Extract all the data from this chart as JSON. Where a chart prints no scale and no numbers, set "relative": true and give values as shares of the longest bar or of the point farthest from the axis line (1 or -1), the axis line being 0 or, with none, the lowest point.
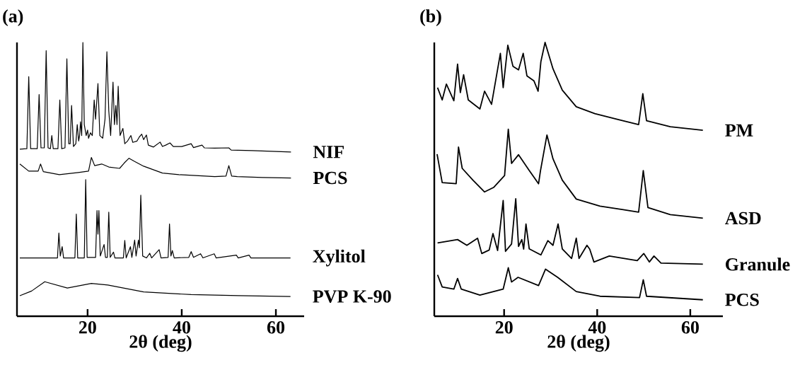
{
  "chart_data": [
    {
      "type": "line",
      "title": "(a)",
      "xlabel": "2θ (deg)",
      "relative": true,
      "xlim": [
        5,
        66
      ],
      "xticks": [
        20,
        40,
        60
      ],
      "series": [
        {
          "name": "NIF",
          "color": "#000000",
          "x": [
            5.6,
            7.1,
            7.5,
            7.9,
            9.3,
            9.7,
            10.1,
            10.8,
            11.2,
            11.6,
            12.1,
            12.4,
            12.7,
            13.7,
            14.1,
            14.5,
            15.2,
            15.6,
            16.0,
            16.3,
            16.6,
            17.0,
            17.5,
            17.8,
            18.1,
            18.3,
            18.5,
            18.75,
            19.0,
            19.3,
            19.7,
            20.0,
            20.2,
            20.6,
            21.0,
            21.4,
            21.7,
            22.2,
            22.6,
            23.2,
            23.7,
            24.1,
            24.5,
            24.9,
            25.4,
            25.7,
            26.0,
            26.25,
            26.5,
            26.9,
            27.5,
            27.9,
            28.5,
            29.2,
            29.6,
            30.5,
            31.0,
            31.5,
            31.9,
            32.5,
            32.9,
            34.0,
            35.4,
            35.9,
            36.6,
            37.5,
            38.2,
            40.0,
            42.0,
            42.5,
            44.3,
            44.8,
            47.0,
            50.0,
            50.5,
            55.0,
            63.2
          ],
          "values": [
            0.61,
            0.612,
            0.875,
            0.612,
            0.612,
            0.81,
            0.615,
            0.615,
            0.97,
            0.615,
            0.612,
            0.66,
            0.612,
            0.612,
            0.79,
            0.612,
            0.615,
            0.94,
            0.63,
            0.63,
            0.77,
            0.62,
            0.63,
            0.7,
            0.64,
            0.66,
            0.71,
            0.66,
            1.0,
            0.7,
            0.66,
            0.68,
            0.65,
            0.67,
            0.66,
            0.79,
            0.72,
            0.85,
            0.66,
            0.65,
            0.72,
            0.966,
            0.75,
            0.66,
            0.855,
            0.7,
            0.77,
            0.7,
            0.84,
            0.66,
            0.686,
            0.63,
            0.64,
            0.66,
            0.635,
            0.64,
            0.655,
            0.665,
            0.645,
            0.662,
            0.625,
            0.618,
            0.636,
            0.62,
            0.625,
            0.633,
            0.62,
            0.62,
            0.63,
            0.616,
            0.625,
            0.615,
            0.614,
            0.615,
            0.607,
            0.605,
            0.6
          ]
        },
        {
          "name": "PCS",
          "color": "#000000",
          "x": [
            5.6,
            7.5,
            9.5,
            10.0,
            10.6,
            14.0,
            18.0,
            20.2,
            20.8,
            21.5,
            23.0,
            24.5,
            26.8,
            27.8,
            28.8,
            30.0,
            31.9,
            35.9,
            39.4,
            47.0,
            49.4,
            50.0,
            50.6,
            51.8,
            57.1,
            63.2
          ],
          "values": [
            0.556,
            0.53,
            0.53,
            0.556,
            0.528,
            0.517,
            0.525,
            0.53,
            0.58,
            0.55,
            0.556,
            0.545,
            0.54,
            0.56,
            0.577,
            0.565,
            0.548,
            0.523,
            0.517,
            0.51,
            0.512,
            0.55,
            0.512,
            0.51,
            0.507,
            0.505
          ]
        },
        {
          "name": "Xylitol",
          "color": "#000000",
          "x": [
            5.6,
            13.6,
            13.9,
            14.2,
            14.6,
            14.9,
            17.3,
            17.6,
            17.9,
            19.3,
            19.6,
            19.9,
            21.7,
            22.0,
            22.2,
            22.4,
            22.7,
            23.5,
            23.8,
            24.2,
            24.5,
            24.8,
            25.5,
            25.8,
            27.6,
            27.9,
            28.2,
            29.1,
            29.4,
            30.0,
            30.3,
            30.8,
            31.0,
            31.3,
            31.7,
            32.5,
            33.2,
            33.6,
            35.2,
            35.6,
            37.1,
            37.4,
            37.7,
            38.0,
            38.4,
            41.5,
            42.0,
            42.5,
            44.0,
            44.5,
            46.9,
            47.3,
            51.6,
            52.0,
            54.3,
            54.7,
            63.1
          ],
          "values": [
            0.213,
            0.213,
            0.304,
            0.22,
            0.254,
            0.213,
            0.213,
            0.373,
            0.213,
            0.213,
            0.499,
            0.215,
            0.215,
            0.386,
            0.3,
            0.386,
            0.22,
            0.262,
            0.215,
            0.215,
            0.38,
            0.215,
            0.234,
            0.213,
            0.213,
            0.277,
            0.213,
            0.254,
            0.215,
            0.278,
            0.22,
            0.278,
            0.25,
            0.442,
            0.22,
            0.213,
            0.23,
            0.213,
            0.243,
            0.213,
            0.215,
            0.337,
            0.22,
            0.24,
            0.213,
            0.215,
            0.236,
            0.215,
            0.228,
            0.213,
            0.228,
            0.213,
            0.223,
            0.213,
            0.223,
            0.213,
            0.213
          ]
        },
        {
          "name": "PVP K-90",
          "color": "#000000",
          "x": [
            5.6,
            8.1,
            10.9,
            15.7,
            20.8,
            24.3,
            31.9,
            42.0,
            52.1,
            63.1
          ],
          "values": [
            0.075,
            0.092,
            0.126,
            0.103,
            0.12,
            0.114,
            0.089,
            0.079,
            0.075,
            0.072
          ]
        }
      ]
    },
    {
      "type": "line",
      "title": "(b)",
      "xlabel": "2θ (deg)",
      "relative": true,
      "xlim": [
        5,
        67
      ],
      "xticks": [
        20,
        40,
        60
      ],
      "series": [
        {
          "name": "PM",
          "color": "#000000",
          "x": [
            5.7,
            6.7,
            7.6,
            9.2,
            10.0,
            10.6,
            11.3,
            12.3,
            14.8,
            15.8,
            17.3,
            19.2,
            19.8,
            20.8,
            21.9,
            23.1,
            24.1,
            24.9,
            26.4,
            27.3,
            27.9,
            28.8,
            30.5,
            32.5,
            35.5,
            39.5,
            44.6,
            48.9,
            49.8,
            50.6,
            55.7,
            62.7
          ],
          "values": [
            0.835,
            0.79,
            0.848,
            0.787,
            0.921,
            0.817,
            0.882,
            0.79,
            0.757,
            0.822,
            0.774,
            0.96,
            0.835,
            0.99,
            0.913,
            0.9,
            0.96,
            0.878,
            0.86,
            0.822,
            0.93,
            1.0,
            0.904,
            0.826,
            0.765,
            0.74,
            0.718,
            0.7,
            0.813,
            0.714,
            0.692,
            0.679
          ]
        },
        {
          "name": "ASD",
          "color": "#000000",
          "x": [
            5.6,
            6.7,
            9.7,
            10.2,
            11.0,
            13.3,
            15.8,
            17.8,
            20.1,
            20.9,
            21.6,
            23.1,
            25.4,
            27.4,
            27.8,
            29.2,
            30.5,
            32.5,
            35.5,
            40.6,
            45.6,
            48.9,
            49.9,
            50.9,
            55.7,
            62.7
          ],
          "values": [
            0.592,
            0.488,
            0.484,
            0.618,
            0.54,
            0.497,
            0.454,
            0.471,
            0.514,
            0.683,
            0.558,
            0.59,
            0.532,
            0.484,
            0.53,
            0.662,
            0.575,
            0.497,
            0.428,
            0.402,
            0.389,
            0.38,
            0.532,
            0.397,
            0.371,
            0.358
          ]
        },
        {
          "name": "Granule",
          "color": "#000000",
          "x": [
            5.7,
            10.0,
            12.0,
            14.3,
            15.2,
            16.8,
            17.6,
            18.6,
            19.8,
            20.3,
            21.6,
            22.5,
            23.1,
            23.8,
            24.2,
            24.7,
            25.4,
            27.9,
            29.4,
            30.5,
            31.6,
            32.5,
            34.5,
            35.5,
            36.1,
            37.8,
            38.4,
            39.3,
            42.6,
            48.6,
            50.0,
            51.2,
            52.2,
            53.7,
            62.7
          ],
          "values": [
            0.268,
            0.28,
            0.259,
            0.285,
            0.229,
            0.242,
            0.302,
            0.24,
            0.423,
            0.237,
            0.264,
            0.429,
            0.255,
            0.28,
            0.245,
            0.337,
            0.246,
            0.224,
            0.276,
            0.259,
            0.337,
            0.246,
            0.211,
            0.285,
            0.211,
            0.259,
            0.245,
            0.198,
            0.22,
            0.203,
            0.229,
            0.198,
            0.22,
            0.194,
            0.19
          ]
        },
        {
          "name": "PCS",
          "color": "#000000",
          "x": [
            5.7,
            6.7,
            9.2,
            10.0,
            10.8,
            14.8,
            19.8,
            20.9,
            21.6,
            23.0,
            27.4,
            28.9,
            31.5,
            35.5,
            40.6,
            49.1,
            49.9,
            50.6,
            62.7
          ],
          "values": [
            0.151,
            0.107,
            0.099,
            0.138,
            0.099,
            0.077,
            0.099,
            0.177,
            0.125,
            0.142,
            0.112,
            0.172,
            0.142,
            0.09,
            0.073,
            0.068,
            0.133,
            0.073,
            0.06
          ]
        }
      ]
    }
  ]
}
